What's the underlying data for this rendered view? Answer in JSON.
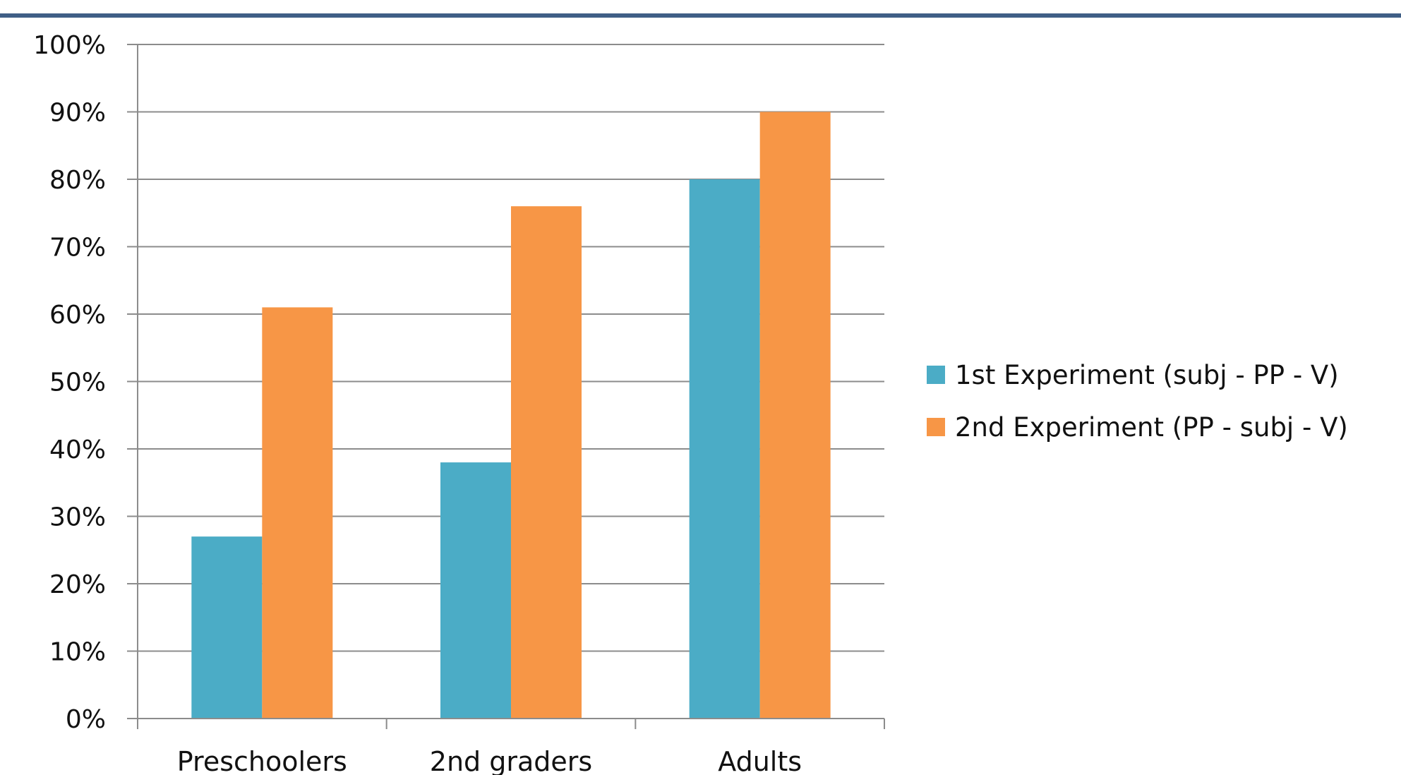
{
  "chart_data": {
    "type": "bar",
    "title": "",
    "xlabel": "",
    "ylabel": "",
    "categories": [
      "Preschoolers",
      "2nd graders",
      "Adults"
    ],
    "series": [
      {
        "name": "1st Experiment (subj - PP - V)",
        "values": [
          27,
          38,
          80
        ],
        "color": "#4BACC6"
      },
      {
        "name": "2nd Experiment (PP - subj - V)",
        "values": [
          61,
          76,
          90
        ],
        "color": "#F79646"
      }
    ],
    "ylim": [
      0,
      100
    ],
    "yticks": [
      0,
      10,
      20,
      30,
      40,
      50,
      60,
      70,
      80,
      90,
      100
    ],
    "ytick_labels": [
      "0%",
      "10%",
      "20%",
      "30%",
      "40%",
      "50%",
      "60%",
      "70%",
      "80%",
      "90%",
      "100%"
    ],
    "grid": true,
    "legend_position": "right",
    "colors": {
      "top_rule": "#3F5F86",
      "gridline": "#8C8C8C",
      "axis": "#8C8C8C"
    }
  }
}
